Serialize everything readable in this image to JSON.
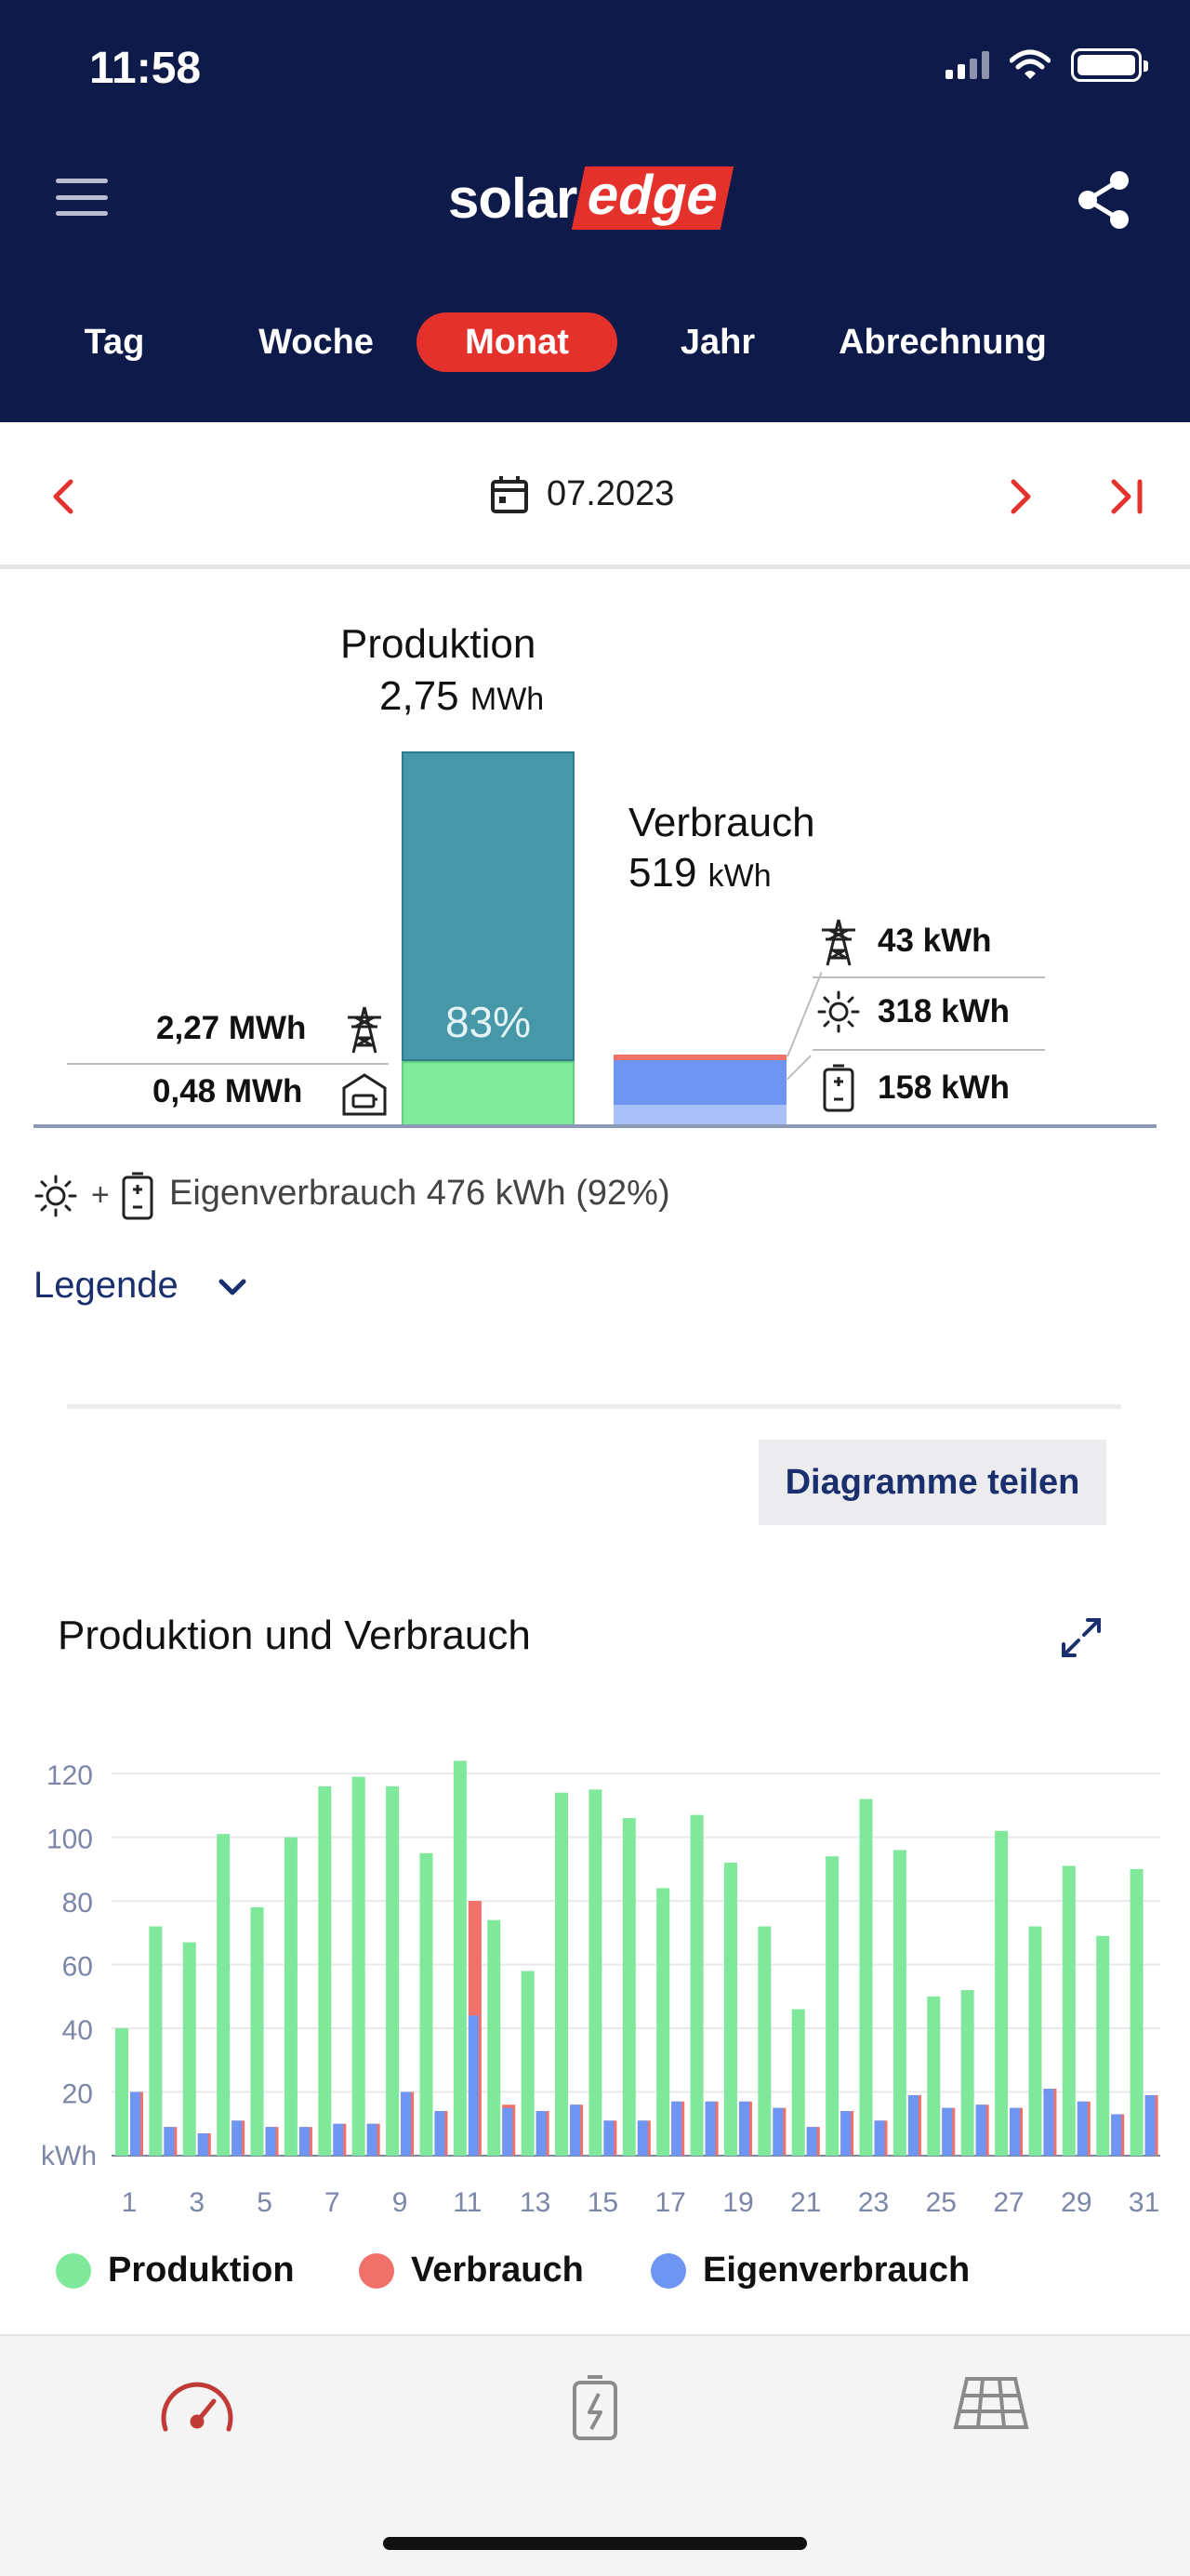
{
  "status_bar": {
    "time": "11:58"
  },
  "header": {
    "logo_solar": "solar",
    "logo_edge": "edge",
    "tabs": [
      {
        "label": "Tag",
        "active": false
      },
      {
        "label": "Woche",
        "active": false
      },
      {
        "label": "Monat",
        "active": true
      },
      {
        "label": "Jahr",
        "active": false
      },
      {
        "label": "Abrechnung",
        "active": false
      }
    ]
  },
  "date_nav": {
    "date": "07.2023"
  },
  "summary": {
    "production_title": "Produktion",
    "production_value": "2,75",
    "production_unit": "MWh",
    "production_self_pct": "83%",
    "consumption_title": "Verbrauch",
    "consumption_value": "519",
    "consumption_unit": "kWh",
    "export_grid": "2,27 MWh",
    "to_battery": "0,48 MWh",
    "from_grid": "43 kWh",
    "from_solar": "318 kWh",
    "from_battery": "158 kWh",
    "self_consumption_text": "Eigenverbrauch 476 kWh (92%)",
    "plus": "+",
    "legend_link": "Legende"
  },
  "share_charts_label": "Diagramme teilen",
  "chart_section": {
    "title": "Produktion und Verbrauch"
  },
  "chart_data": {
    "type": "bar",
    "title": "Produktion und Verbrauch",
    "ylabel": "kWh",
    "ylim": [
      0,
      125
    ],
    "yticks": [
      20,
      40,
      60,
      80,
      100,
      120
    ],
    "x": [
      1,
      2,
      3,
      4,
      5,
      6,
      7,
      8,
      9,
      10,
      11,
      12,
      13,
      14,
      15,
      16,
      17,
      18,
      19,
      20,
      21,
      22,
      23,
      24,
      25,
      26,
      27,
      28,
      29,
      30,
      31
    ],
    "xtick_labels": [
      "1",
      "3",
      "5",
      "7",
      "9",
      "11",
      "13",
      "15",
      "17",
      "19",
      "21",
      "23",
      "25",
      "27",
      "29",
      "31"
    ],
    "grid": true,
    "legend_position": "bottom",
    "series": [
      {
        "name": "Produktion",
        "color": "#7fe89b",
        "values": [
          40,
          72,
          67,
          101,
          78,
          100,
          116,
          119,
          116,
          95,
          124,
          74,
          58,
          114,
          115,
          106,
          84,
          107,
          92,
          72,
          46,
          94,
          112,
          96,
          50,
          52,
          102,
          72,
          91,
          69,
          90
        ]
      },
      {
        "name": "Verbrauch",
        "color": "#f0706a",
        "values": [
          20,
          9,
          7,
          11,
          9,
          9,
          10,
          10,
          20,
          14,
          80,
          16,
          14,
          16,
          11,
          11,
          17,
          17,
          17,
          15,
          9,
          14,
          11,
          19,
          15,
          16,
          15,
          21,
          17,
          13,
          19
        ]
      },
      {
        "name": "Eigenverbrauch",
        "color": "#6f95f2",
        "values": [
          20,
          9,
          7,
          11,
          9,
          9,
          10,
          10,
          20,
          14,
          44,
          15,
          14,
          16,
          11,
          11,
          17,
          17,
          17,
          15,
          9,
          14,
          11,
          19,
          15,
          16,
          15,
          21,
          17,
          13,
          19
        ]
      }
    ]
  },
  "colors": {
    "header_bg": "#0d1a4a",
    "accent": "#e5312b",
    "production": "#7fe89b",
    "production_top": "#4698a8",
    "consumption": "#f0706a",
    "self_consumption": "#6f95f2",
    "link": "#1a2f6e"
  },
  "icons": {
    "status": [
      "signal-icon",
      "wifi-icon",
      "battery-icon"
    ],
    "header": [
      "menu-icon",
      "share-icon"
    ],
    "bottom_nav": [
      "dashboard-gauge-icon",
      "storage-battery-icon",
      "solar-panel-icon"
    ]
  }
}
